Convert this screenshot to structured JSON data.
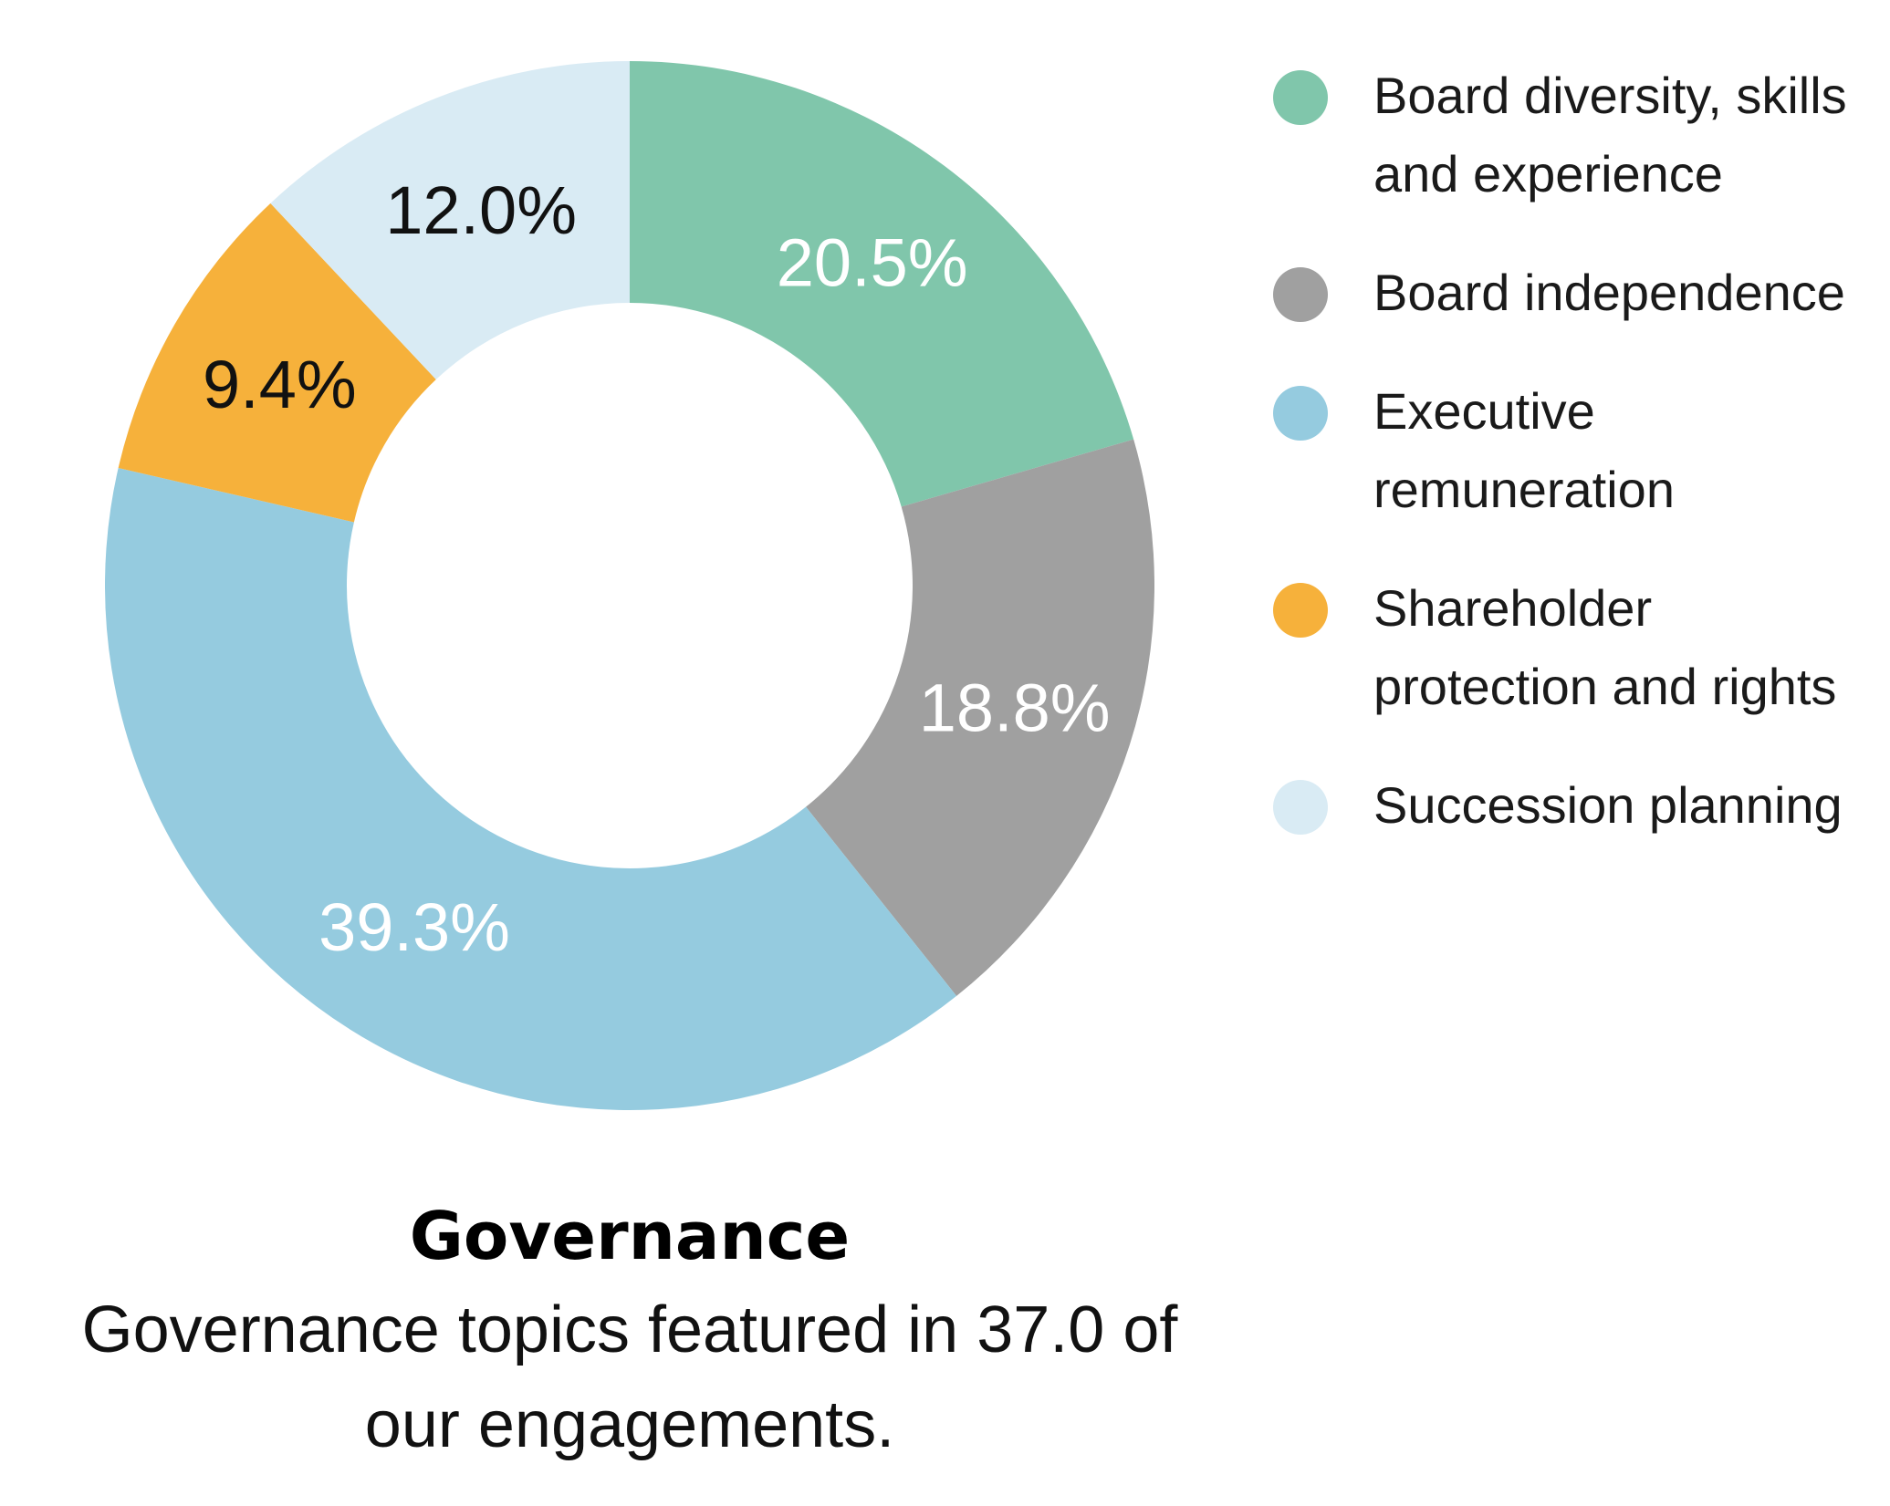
{
  "chart_data": {
    "type": "pie",
    "variant": "donut",
    "title": "Governance",
    "subtitle": "Governance topics featured in 37.0 of our engagements.",
    "legend_position": "right",
    "slices": [
      {
        "label": "Board diversity, skills and experience",
        "value": 20.5,
        "display": "20.5%",
        "color": "#80c6ab",
        "label_color": "#ffffff"
      },
      {
        "label": "Board independence",
        "value": 18.8,
        "display": "18.8%",
        "color": "#a0a0a0",
        "label_color": "#ffffff"
      },
      {
        "label": "Executive remuneration",
        "value": 39.3,
        "display": "39.3%",
        "color": "#95cbdf",
        "label_color": "#ffffff"
      },
      {
        "label": "Shareholder protection and rights",
        "value": 9.4,
        "display": "9.4%",
        "color": "#f6b13b",
        "label_color": "#111111"
      },
      {
        "label": "Succession planning",
        "value": 12.0,
        "display": "12.0%",
        "color": "#d9ebf4",
        "label_color": "#111111"
      }
    ]
  }
}
